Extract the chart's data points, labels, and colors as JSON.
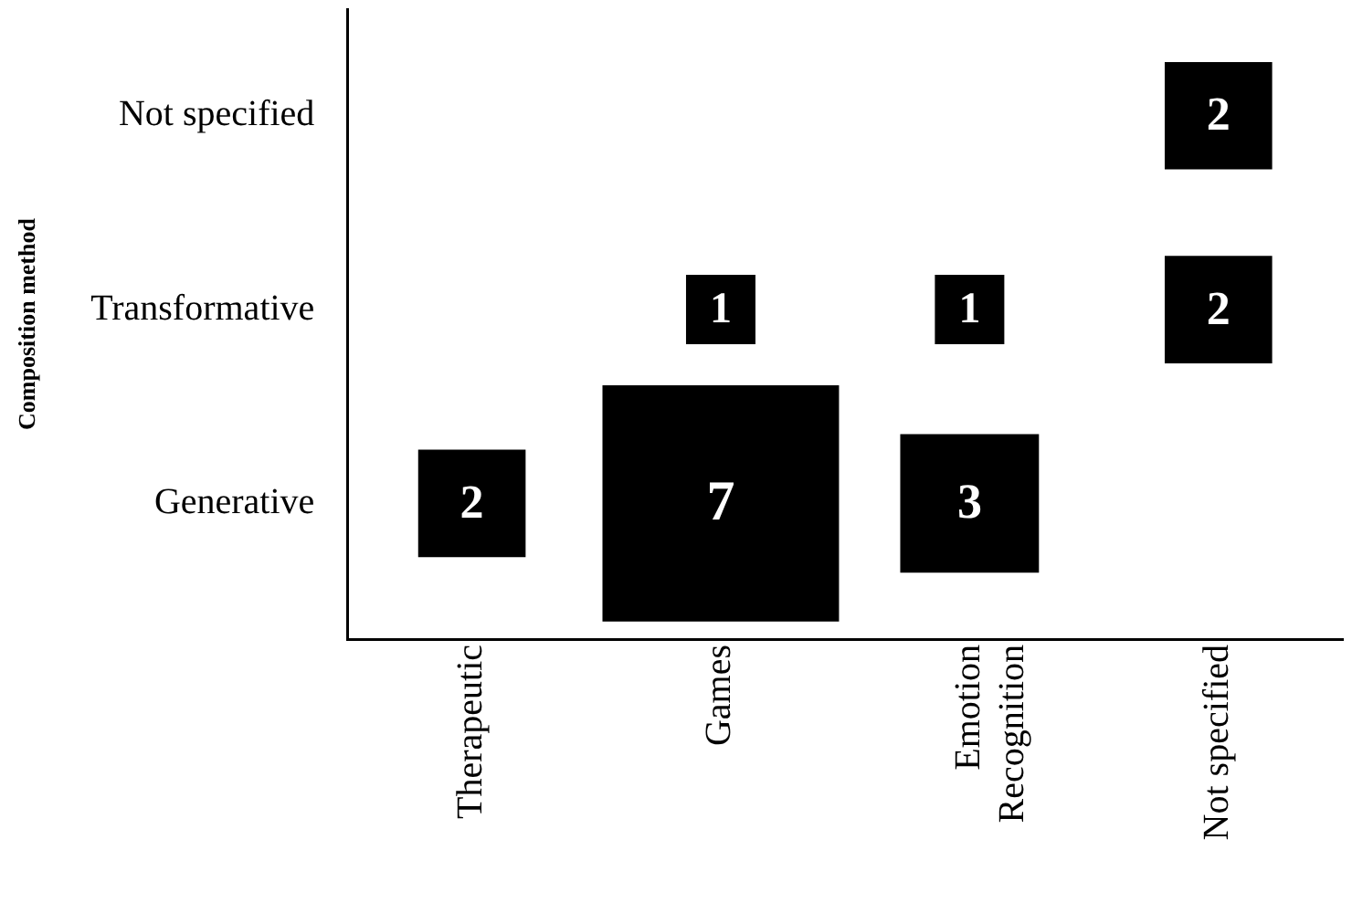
{
  "chart_data": {
    "type": "heatmap",
    "ylabel": "Composition method",
    "categories": [
      "Therapeutic",
      "Games",
      "Emotion Recognition",
      "Not specified"
    ],
    "y_categories": [
      "Not specified",
      "Transformative",
      "Generative"
    ],
    "cells": [
      [
        null,
        null,
        null,
        2
      ],
      [
        null,
        1,
        1,
        2
      ],
      [
        2,
        7,
        3,
        null
      ]
    ],
    "color": "#000000",
    "grid": false,
    "data_labels": true
  }
}
